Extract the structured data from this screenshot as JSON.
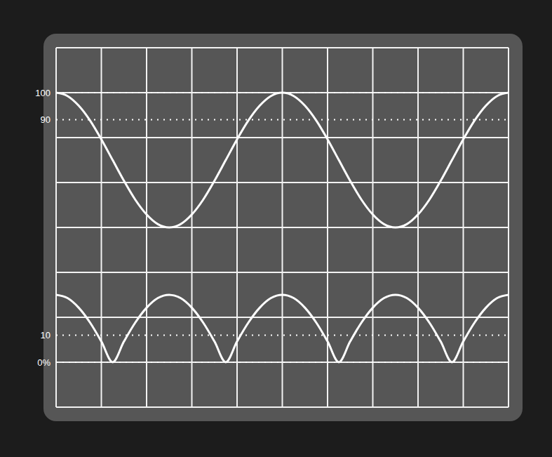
{
  "chart_data": {
    "type": "line",
    "x": [
      0,
      0.25,
      0.5,
      0.75,
      1,
      1.25,
      1.5,
      1.75,
      2,
      2.25,
      2.5,
      2.75,
      3,
      3.25,
      3.5,
      3.75,
      4,
      4.25,
      4.5,
      4.75,
      5,
      5.25,
      5.5,
      5.75,
      6,
      6.25,
      6.5,
      6.75,
      7,
      7.25,
      7.5,
      7.75,
      8,
      8.25,
      8.5,
      8.75,
      9,
      9.25,
      9.5,
      9.75,
      10
    ],
    "series": [
      {
        "color": "#ffffff",
        "values": [
          100,
          98.8,
          95.2,
          89.7,
          82.7,
          75,
          67.3,
          60.3,
          54.8,
          51.2,
          50,
          51.2,
          54.8,
          60.3,
          67.3,
          75,
          82.7,
          89.7,
          95.2,
          98.8,
          100,
          98.8,
          95.2,
          89.7,
          82.7,
          75,
          67.3,
          60.3,
          54.8,
          51.2,
          50,
          51.2,
          54.8,
          60.3,
          67.3,
          75,
          82.7,
          89.7,
          95.2,
          98.8,
          100
        ]
      },
      {
        "color": "#ffffff",
        "values": [
          25,
          23.8,
          20.2,
          14.7,
          7.7,
          0,
          7.7,
          14.7,
          20.2,
          23.8,
          25,
          23.8,
          20.2,
          14.7,
          7.7,
          0,
          7.7,
          14.7,
          20.2,
          23.8,
          25,
          23.8,
          20.2,
          14.7,
          7.7,
          0,
          7.7,
          14.7,
          20.2,
          23.8,
          25,
          23.8,
          20.2,
          14.7,
          7.7,
          0,
          7.7,
          14.7,
          20.2,
          23.8,
          25
        ]
      }
    ],
    "xlim": [
      0,
      10
    ],
    "ylim": [
      -16.7,
      116.7
    ],
    "yticks": [
      {
        "value": 0,
        "label": "0%"
      },
      10,
      90,
      100
    ],
    "tick_labels": "y",
    "grid": true
  }
}
